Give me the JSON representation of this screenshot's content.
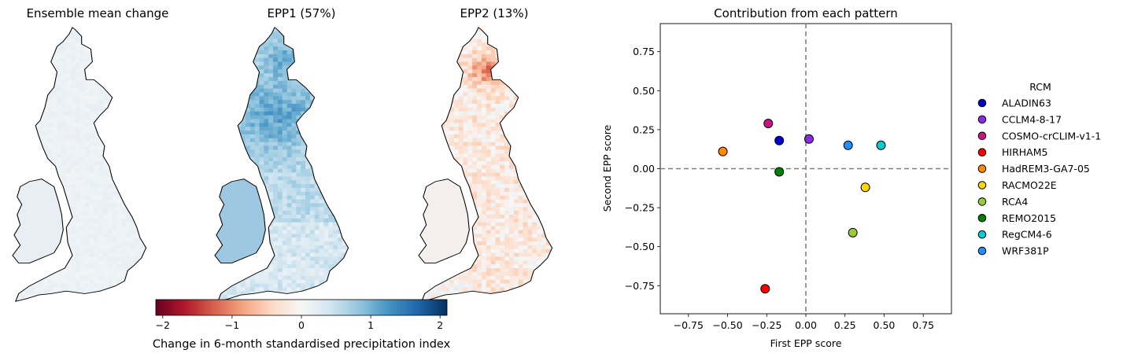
{
  "maps": [
    {
      "title": "Ensemble mean change",
      "pattern": "mean"
    },
    {
      "title": "EPP1 (57%)",
      "pattern": "epp1"
    },
    {
      "title": "EPP2 (13%)",
      "pattern": "epp2"
    }
  ],
  "colorbar": {
    "label": "Change in 6-month standardised precipitation index",
    "range": [
      -2.1,
      2.1
    ],
    "ticks": [
      -2,
      -1,
      0,
      1,
      2
    ],
    "tick_labels": [
      "−2",
      "−1",
      "0",
      "1",
      "2"
    ],
    "colormap": "RdBu",
    "stops": [
      "#67001f",
      "#b2182b",
      "#d6604d",
      "#f4a582",
      "#fddbc7",
      "#f7f7f7",
      "#d1e5f0",
      "#92c5de",
      "#4393c3",
      "#2166ac",
      "#053061"
    ]
  },
  "chart_data": {
    "type": "scatter",
    "title": "Contribution from each pattern",
    "xlabel": "First EPP score",
    "ylabel": "Second EPP score",
    "xlim": [
      -0.93,
      0.93
    ],
    "ylim": [
      -0.93,
      0.93
    ],
    "xticks": [
      -0.75,
      -0.5,
      -0.25,
      0.0,
      0.25,
      0.5,
      0.75
    ],
    "xtick_labels": [
      "−0.75",
      "−0.50",
      "−0.25",
      "0.00",
      "0.25",
      "0.50",
      "0.75"
    ],
    "yticks": [
      -0.75,
      -0.5,
      -0.25,
      0.0,
      0.25,
      0.5,
      0.75
    ],
    "ytick_labels": [
      "−0.75",
      "−0.50",
      "−0.25",
      "0.00",
      "0.25",
      "0.50",
      "0.75"
    ],
    "reference_lines": {
      "x": 0,
      "y": 0,
      "style": "dashed",
      "color": "#808080"
    },
    "grid": false,
    "legend": {
      "title": "RCM",
      "placement": "outside-right"
    },
    "points": [
      {
        "name": "ALADIN63",
        "x": -0.17,
        "y": 0.18,
        "color": "#0000cd"
      },
      {
        "name": "CCLM4-8-17",
        "x": 0.02,
        "y": 0.19,
        "color": "#8a2be2"
      },
      {
        "name": "COSMO-crCLIM-v1-1",
        "x": -0.24,
        "y": 0.29,
        "color": "#c71585"
      },
      {
        "name": "HIRHAM5",
        "x": -0.26,
        "y": -0.77,
        "color": "#ff0000"
      },
      {
        "name": "HadREM3-GA7-05",
        "x": -0.53,
        "y": 0.11,
        "color": "#ff8c00"
      },
      {
        "name": "RACMO22E",
        "x": 0.38,
        "y": -0.12,
        "color": "#ffd700"
      },
      {
        "name": "RCA4",
        "x": 0.3,
        "y": -0.41,
        "color": "#9acd32"
      },
      {
        "name": "REMO2015",
        "x": -0.17,
        "y": -0.02,
        "color": "#008000"
      },
      {
        "name": "RegCM4-6",
        "x": 0.48,
        "y": 0.15,
        "color": "#00ced1"
      },
      {
        "name": "WRF381P",
        "x": 0.27,
        "y": 0.15,
        "color": "#1e90ff"
      }
    ]
  }
}
